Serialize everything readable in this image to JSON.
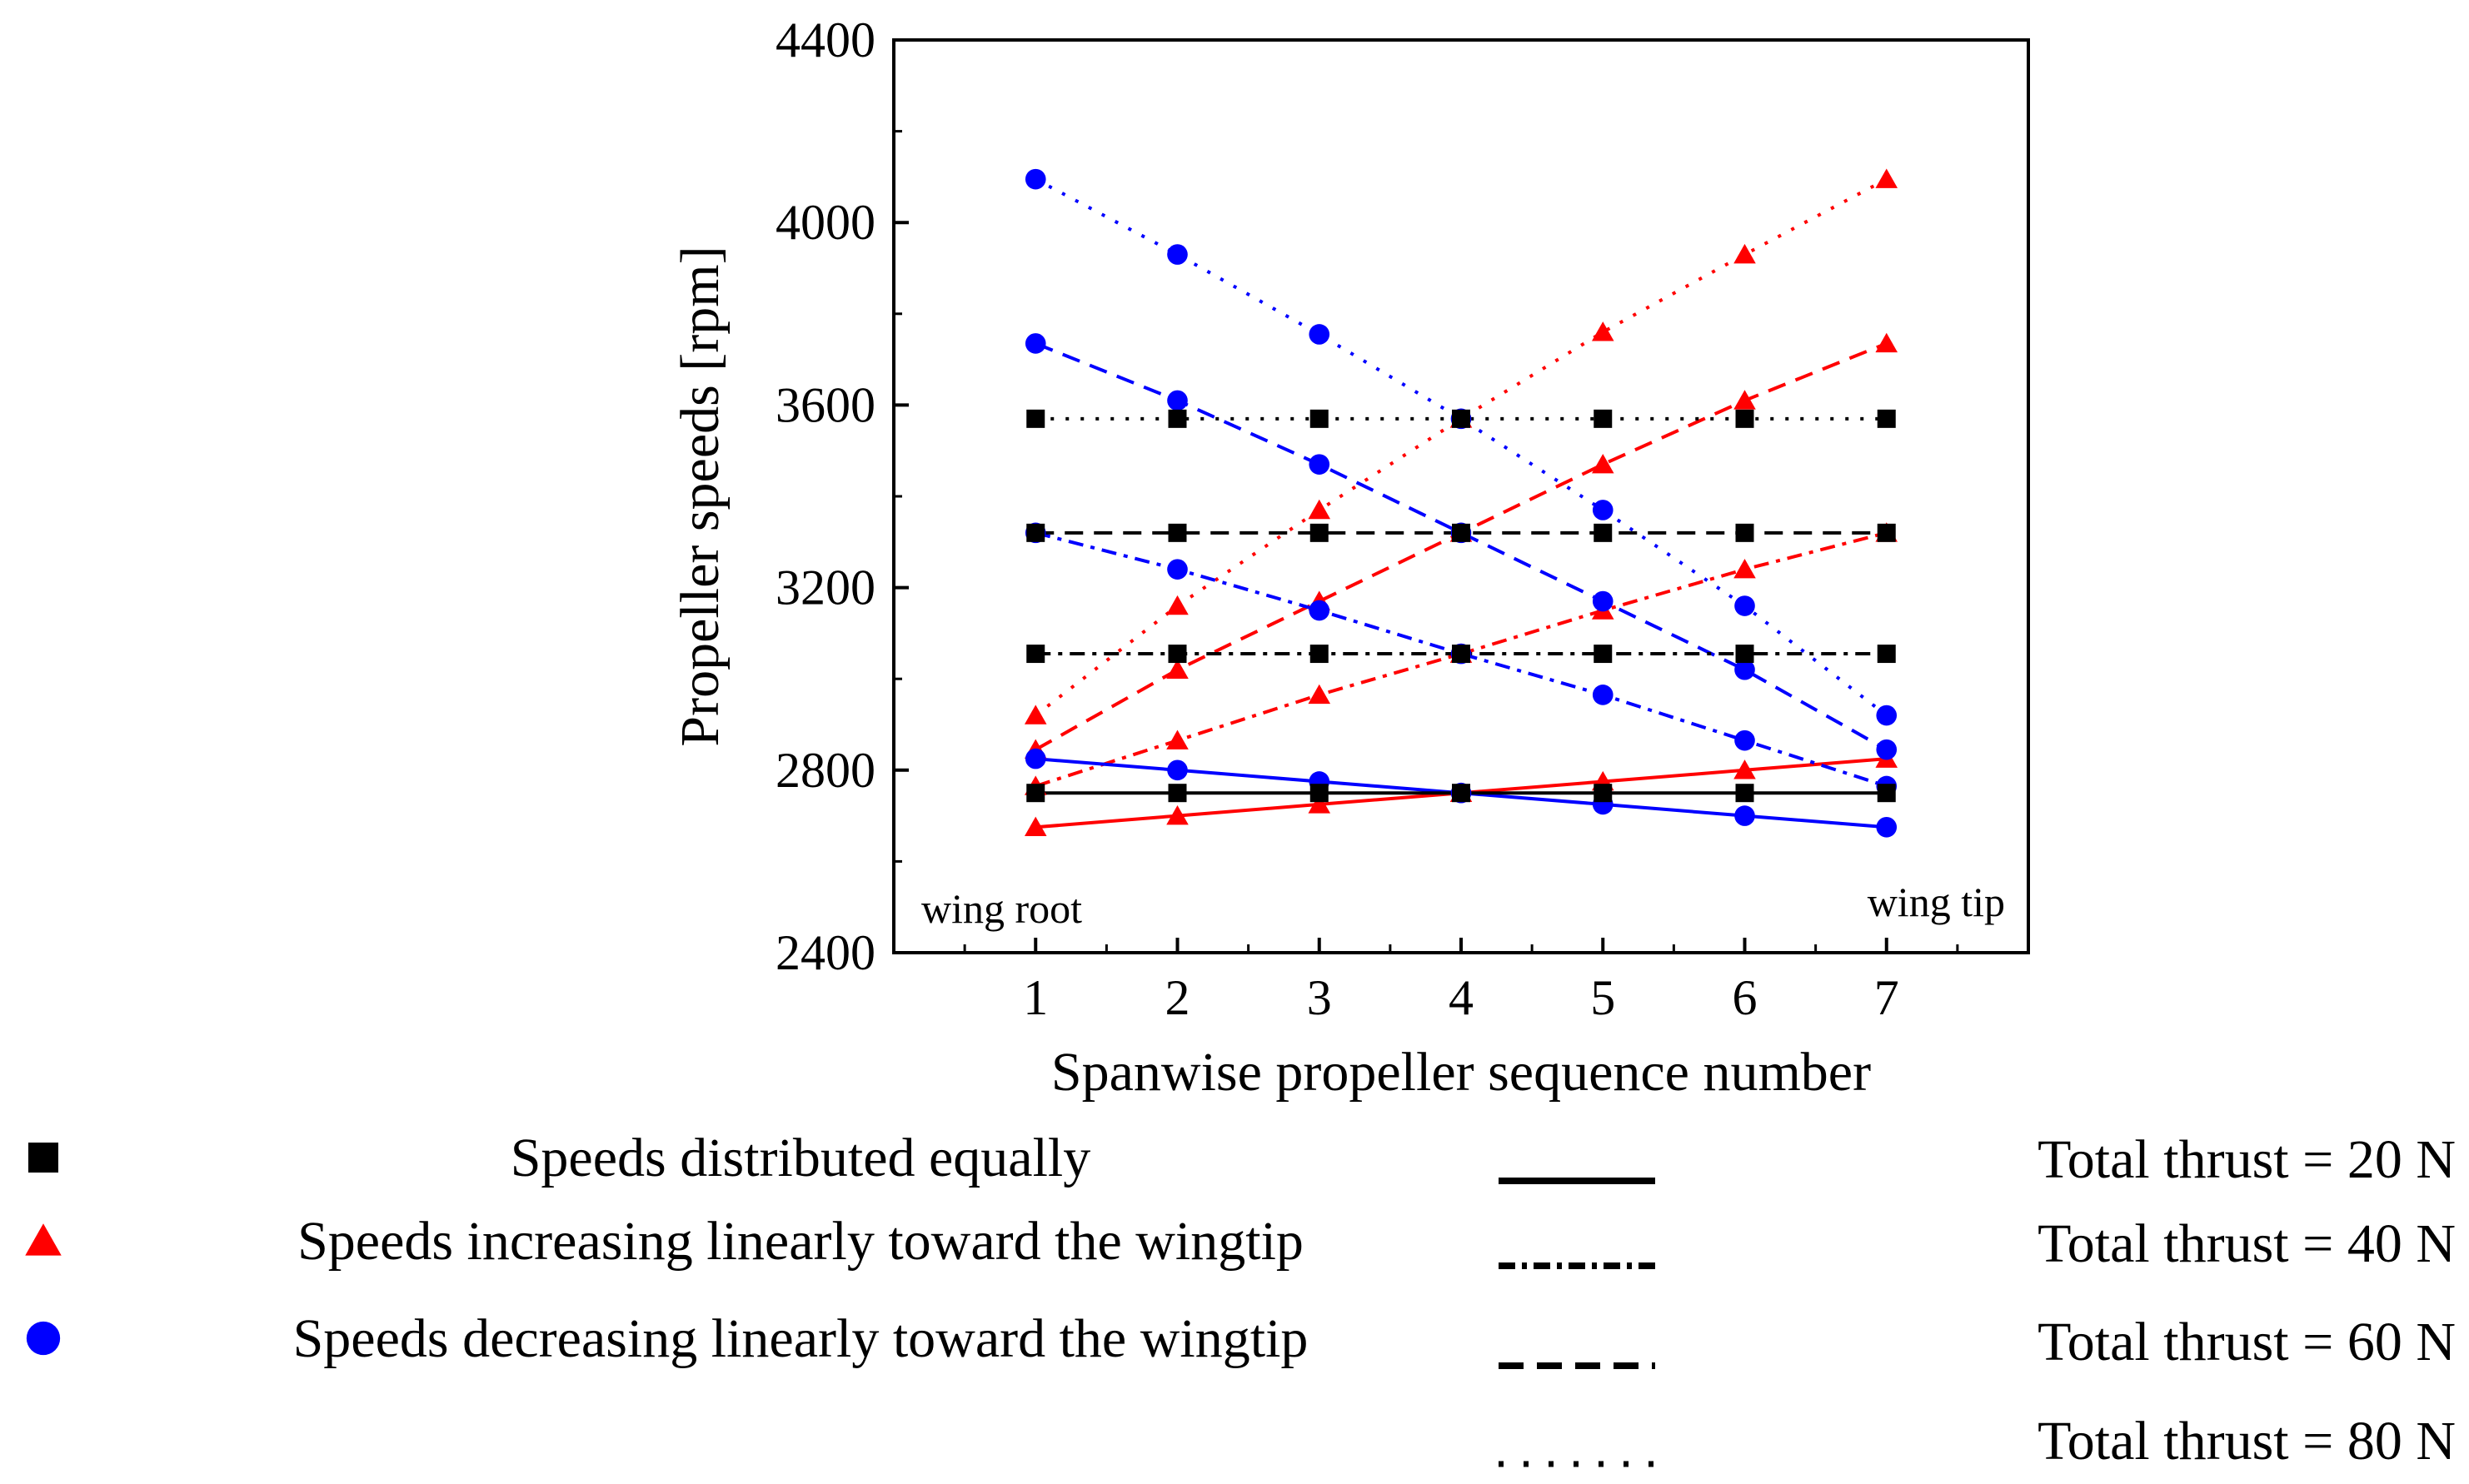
{
  "chart_data": {
    "type": "line",
    "title": "",
    "xlabel": "Spanwise propeller sequence number",
    "ylabel": "Propeller speeds [rpm]",
    "x": [
      1,
      2,
      3,
      4,
      5,
      6,
      7
    ],
    "xlim": [
      0,
      8
    ],
    "ylim": [
      2400,
      4400
    ],
    "x_ticks": [
      "1",
      "2",
      "3",
      "4",
      "5",
      "6",
      "7"
    ],
    "y_ticks": [
      "2400",
      "2800",
      "3200",
      "3600",
      "4000",
      "4400"
    ],
    "annotations": {
      "wing_root": "wing root",
      "wing_tip": "wing tip"
    },
    "grid": false,
    "distributions": [
      {
        "key": "equal",
        "label": "Speeds distributed equally",
        "marker": "square",
        "color": "#000000"
      },
      {
        "key": "increasing",
        "label": "Speeds increasing linearly toward the wingtip",
        "marker": "triangle",
        "color": "#ff0000"
      },
      {
        "key": "decreasing",
        "label": "Speeds decreasing linearly toward the wingtip",
        "marker": "circle",
        "color": "#0000ff"
      }
    ],
    "thrust_cases": [
      {
        "key": "t20",
        "label": "Total thrust = 20 N",
        "dash": "solid"
      },
      {
        "key": "t40",
        "label": "Total thrust = 40 N",
        "dash": "dashdot"
      },
      {
        "key": "t60",
        "label": "Total thrust = 60 N",
        "dash": "dashed"
      },
      {
        "key": "t80",
        "label": "Total thrust = 80 N",
        "dash": "dotted"
      }
    ],
    "series": [
      {
        "name": "Equal, 20 N",
        "distribution": "equal",
        "thrust": "t20",
        "values": [
          2750,
          2750,
          2750,
          2750,
          2750,
          2750,
          2750
        ]
      },
      {
        "name": "Equal, 40 N",
        "distribution": "equal",
        "thrust": "t40",
        "values": [
          3055,
          3055,
          3055,
          3055,
          3055,
          3055,
          3055
        ]
      },
      {
        "name": "Equal, 60 N",
        "distribution": "equal",
        "thrust": "t60",
        "values": [
          3320,
          3320,
          3320,
          3320,
          3320,
          3320,
          3320
        ]
      },
      {
        "name": "Equal, 80 N",
        "distribution": "equal",
        "thrust": "t80",
        "values": [
          3570,
          3570,
          3570,
          3570,
          3570,
          3570,
          3570
        ]
      },
      {
        "name": "Increasing, 20 N",
        "distribution": "increasing",
        "thrust": "t20",
        "values": [
          2675,
          2700,
          2725,
          2750,
          2775,
          2800,
          2825
        ]
      },
      {
        "name": "Increasing, 40 N",
        "distribution": "increasing",
        "thrust": "t40",
        "values": [
          2765,
          2865,
          2965,
          3055,
          3150,
          3240,
          3320
        ]
      },
      {
        "name": "Increasing, 60 N",
        "distribution": "increasing",
        "thrust": "t60",
        "values": [
          2845,
          3020,
          3170,
          3320,
          3470,
          3610,
          3735
        ]
      },
      {
        "name": "Increasing, 80 N",
        "distribution": "increasing",
        "thrust": "t80",
        "values": [
          2920,
          3160,
          3370,
          3570,
          3760,
          3930,
          4095
        ]
      },
      {
        "name": "Decreasing, 20 N",
        "distribution": "decreasing",
        "thrust": "t20",
        "values": [
          2825,
          2800,
          2775,
          2750,
          2725,
          2700,
          2675
        ]
      },
      {
        "name": "Decreasing, 40 N",
        "distribution": "decreasing",
        "thrust": "t40",
        "values": [
          3320,
          3240,
          3150,
          3055,
          2965,
          2865,
          2765
        ]
      },
      {
        "name": "Decreasing, 60 N",
        "distribution": "decreasing",
        "thrust": "t60",
        "values": [
          3735,
          3610,
          3470,
          3320,
          3170,
          3020,
          2845
        ]
      },
      {
        "name": "Decreasing, 80 N",
        "distribution": "decreasing",
        "thrust": "t80",
        "values": [
          4095,
          3930,
          3755,
          3570,
          3370,
          3160,
          2920
        ]
      }
    ]
  }
}
